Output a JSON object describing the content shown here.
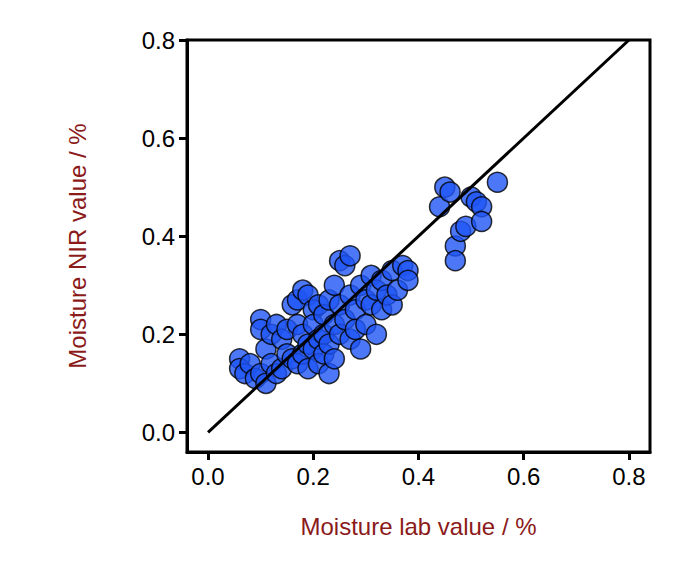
{
  "chart_data": {
    "type": "scatter",
    "x_label": "Moisture lab value / %",
    "y_label": "Moisture NIR value / %",
    "xlim": [
      -0.04,
      0.84
    ],
    "ylim": [
      -0.04,
      0.8
    ],
    "xticks": [
      {
        "value": 0,
        "label": "0.0"
      },
      {
        "value": 0.2,
        "label": "0.2"
      },
      {
        "value": 0.4,
        "label": "0.4"
      },
      {
        "value": 0.6,
        "label": "0.6"
      },
      {
        "value": 0.8,
        "label": "0.8"
      }
    ],
    "yticks": [
      {
        "value": 0,
        "label": "0.0"
      },
      {
        "value": 0.2,
        "label": "0.2"
      },
      {
        "value": 0.4,
        "label": "0.4"
      },
      {
        "value": 0.6,
        "label": "0.6"
      },
      {
        "value": 0.8,
        "label": "0.8"
      }
    ],
    "grid": false,
    "series": [
      {
        "type": "scatter",
        "color": "#1f55f5",
        "marker": "circle",
        "x": [
          0.06,
          0.06,
          0.07,
          0.08,
          0.09,
          0.1,
          0.1,
          0.1,
          0.11,
          0.11,
          0.12,
          0.12,
          0.13,
          0.13,
          0.14,
          0.14,
          0.15,
          0.15,
          0.16,
          0.16,
          0.17,
          0.17,
          0.17,
          0.18,
          0.18,
          0.18,
          0.19,
          0.19,
          0.19,
          0.2,
          0.2,
          0.2,
          0.21,
          0.21,
          0.21,
          0.22,
          0.22,
          0.22,
          0.23,
          0.23,
          0.23,
          0.24,
          0.24,
          0.24,
          0.25,
          0.25,
          0.25,
          0.26,
          0.26,
          0.27,
          0.27,
          0.27,
          0.28,
          0.28,
          0.29,
          0.29,
          0.3,
          0.3,
          0.31,
          0.31,
          0.32,
          0.32,
          0.33,
          0.33,
          0.34,
          0.35,
          0.35,
          0.36,
          0.37,
          0.38,
          0.38,
          0.44,
          0.45,
          0.46,
          0.47,
          0.47,
          0.48,
          0.49,
          0.5,
          0.51,
          0.52,
          0.52,
          0.55
        ],
        "values": [
          0.15,
          0.13,
          0.12,
          0.14,
          0.11,
          0.23,
          0.21,
          0.12,
          0.17,
          0.1,
          0.2,
          0.14,
          0.22,
          0.12,
          0.19,
          0.13,
          0.21,
          0.16,
          0.26,
          0.15,
          0.27,
          0.22,
          0.14,
          0.29,
          0.2,
          0.16,
          0.28,
          0.18,
          0.13,
          0.25,
          0.22,
          0.17,
          0.26,
          0.19,
          0.14,
          0.24,
          0.2,
          0.16,
          0.27,
          0.18,
          0.12,
          0.3,
          0.22,
          0.15,
          0.35,
          0.26,
          0.2,
          0.34,
          0.23,
          0.36,
          0.28,
          0.19,
          0.25,
          0.21,
          0.3,
          0.17,
          0.27,
          0.22,
          0.32,
          0.26,
          0.29,
          0.2,
          0.31,
          0.25,
          0.28,
          0.33,
          0.26,
          0.29,
          0.34,
          0.33,
          0.31,
          0.46,
          0.5,
          0.49,
          0.38,
          0.35,
          0.41,
          0.42,
          0.48,
          0.47,
          0.46,
          0.43,
          0.51
        ]
      },
      {
        "type": "line",
        "color": "#000000",
        "line_style": "solid",
        "x": [
          0,
          0.8
        ],
        "values": [
          0,
          0.8
        ]
      }
    ]
  }
}
